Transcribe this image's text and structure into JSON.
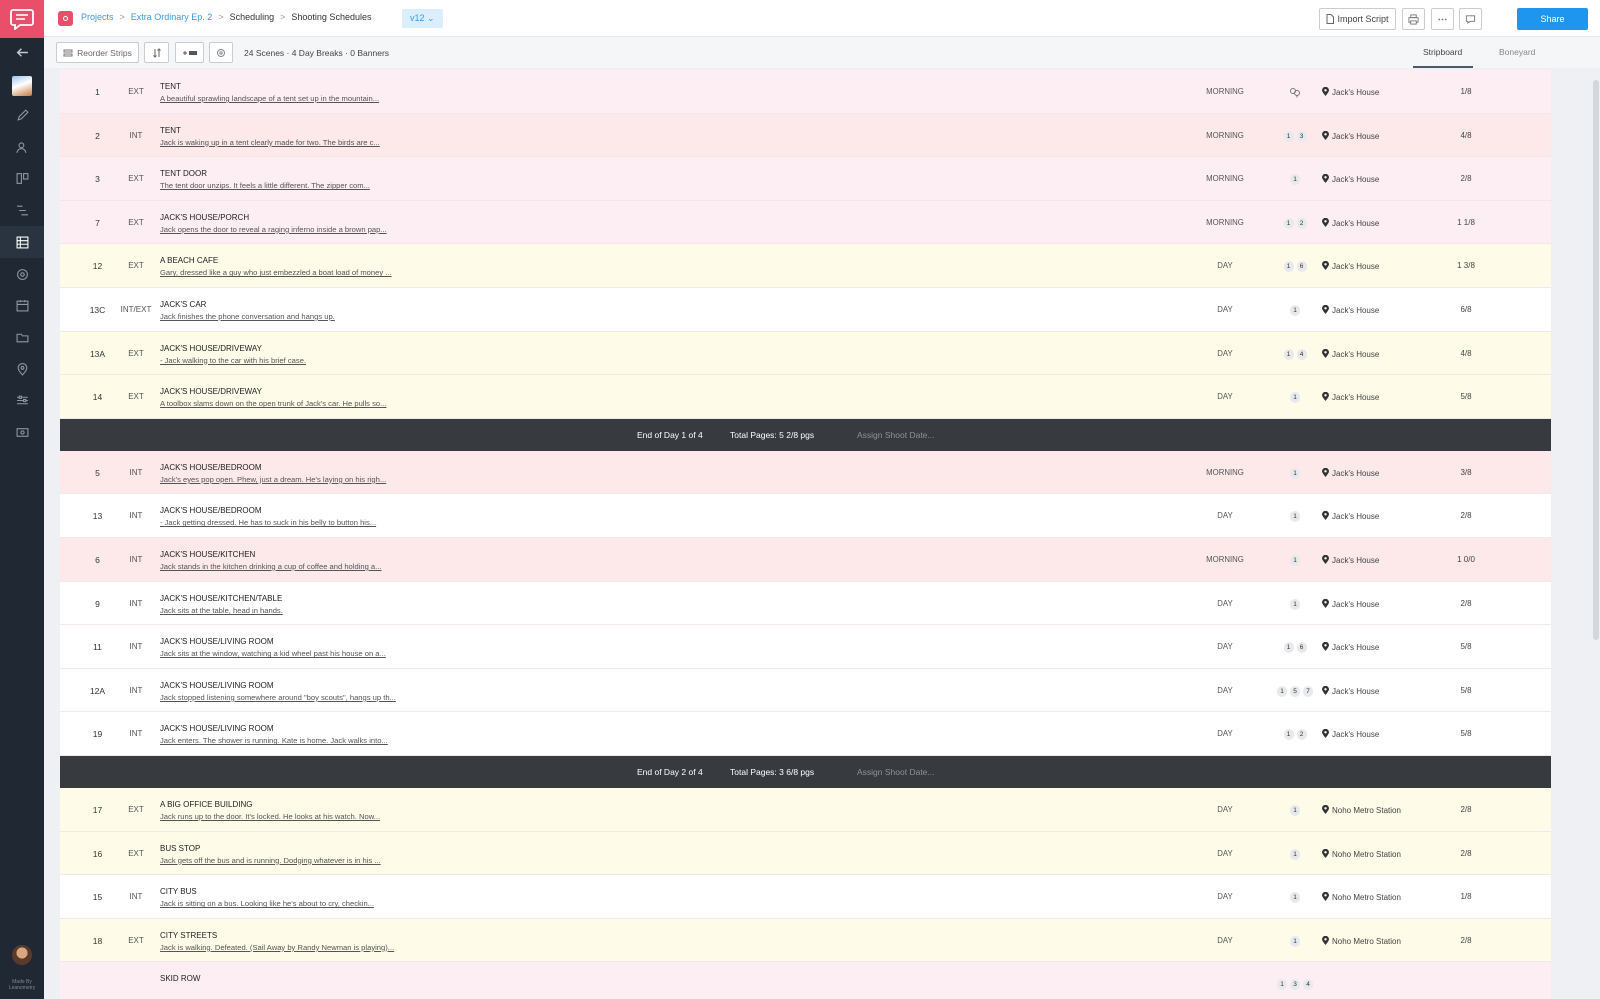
{
  "sidebar": {
    "made_by": "Made By\nLeanometry"
  },
  "breadcrumb": [
    {
      "label": "Projects",
      "link": true
    },
    {
      "label": "Extra Ordinary Ep. 2",
      "link": true
    },
    {
      "label": "Scheduling",
      "link": false
    },
    {
      "label": "Shooting Schedules",
      "link": false
    }
  ],
  "version": "v12",
  "header": {
    "import_label": "Import Script",
    "share_label": "Share"
  },
  "toolbar": {
    "reorder_label": "Reorder Strips",
    "counts": "24 Scenes · 4 Day Breaks · 0 Banners",
    "tabs": [
      "Stripboard",
      "Boneyard"
    ]
  },
  "strips": [
    {
      "kind": "scene",
      "color": "pink",
      "num": "1",
      "ie": "EXT",
      "slug": "TENT",
      "desc": "A beautiful sprawling landscape of a tent set up in the mountain...",
      "tod": "MORNING",
      "cast": [],
      "cast_icon": true,
      "loc": "Jack's House",
      "pages": "1/8"
    },
    {
      "kind": "scene",
      "color": "rose",
      "num": "2",
      "ie": "INT",
      "slug": "TENT",
      "desc": "Jack is waking up in a tent clearly made for two. The birds are c...",
      "tod": "MORNING",
      "cast": [
        "1",
        "3"
      ],
      "loc": "Jack's House",
      "pages": "4/8"
    },
    {
      "kind": "scene",
      "color": "pink",
      "num": "3",
      "ie": "EXT",
      "slug": "TENT DOOR",
      "desc": "The tent door unzips. It feels a little different. The zipper com...",
      "tod": "MORNING",
      "cast": [
        "1"
      ],
      "loc": "Jack's House",
      "pages": "2/8"
    },
    {
      "kind": "scene",
      "color": "pink",
      "num": "7",
      "ie": "EXT",
      "slug": "JACK'S HOUSE/PORCH",
      "desc": "Jack opens the door to reveal a raging inferno inside a brown pap...",
      "tod": "MORNING",
      "cast": [
        "1",
        "2"
      ],
      "loc": "Jack's House",
      "pages": "1 1/8"
    },
    {
      "kind": "scene",
      "color": "yellow",
      "num": "12",
      "ie": "EXT",
      "slug": "A BEACH CAFE",
      "desc": "Gary, dressed like a guy who just embezzled a boat load of money ...",
      "tod": "DAY",
      "cast": [
        "1",
        "6"
      ],
      "loc": "Jack's House",
      "pages": "1 3/8"
    },
    {
      "kind": "scene",
      "color": "white",
      "num": "13C",
      "ie": "INT/EXT",
      "slug": "JACK'S CAR",
      "desc": "Jack finishes the phone conversation and hangs up.",
      "tod": "DAY",
      "cast": [
        "1"
      ],
      "loc": "Jack's House",
      "pages": "6/8"
    },
    {
      "kind": "scene",
      "color": "yellow",
      "num": "13A",
      "ie": "EXT",
      "slug": "JACK'S HOUSE/DRIVEWAY",
      "desc": "- Jack walking to the car with his brief case.",
      "tod": "DAY",
      "cast": [
        "1",
        "4"
      ],
      "loc": "Jack's House",
      "pages": "4/8"
    },
    {
      "kind": "scene",
      "color": "yellow",
      "num": "14",
      "ie": "EXT",
      "slug": "JACK'S HOUSE/DRIVEWAY",
      "desc": "A toolbox slams down on the open trunk of Jack's car. He pulls so...",
      "tod": "DAY",
      "cast": [
        "1"
      ],
      "loc": "Jack's House",
      "pages": "5/8"
    },
    {
      "kind": "break",
      "eod": "End of Day 1 of 4",
      "total": "Total Pages:  5 2/8 pgs",
      "assign": "Assign Shoot Date..."
    },
    {
      "kind": "scene",
      "color": "rose",
      "num": "5",
      "ie": "INT",
      "slug": "JACK'S HOUSE/BEDROOM",
      "desc": "Jack's eyes pop open. Phew, just a dream. He's laying on his righ...",
      "tod": "MORNING",
      "cast": [
        "1"
      ],
      "loc": "Jack's House",
      "pages": "3/8"
    },
    {
      "kind": "scene",
      "color": "white",
      "num": "13",
      "ie": "INT",
      "slug": "JACK'S HOUSE/BEDROOM",
      "desc": "- Jack getting dressed. He has to suck in his belly to button his...",
      "tod": "DAY",
      "cast": [
        "1"
      ],
      "loc": "Jack's House",
      "pages": "2/8"
    },
    {
      "kind": "scene",
      "color": "rose",
      "num": "6",
      "ie": "INT",
      "slug": "JACK'S HOUSE/KITCHEN",
      "desc": "Jack stands in the kitchen drinking a cup of coffee and holding a...",
      "tod": "MORNING",
      "cast": [
        "1"
      ],
      "loc": "Jack's House",
      "pages": "1 0/0"
    },
    {
      "kind": "scene",
      "color": "white",
      "num": "9",
      "ie": "INT",
      "slug": "JACK'S HOUSE/KITCHEN/TABLE",
      "desc": "Jack sits at the table, head in hands.",
      "tod": "DAY",
      "cast": [
        "1"
      ],
      "loc": "Jack's House",
      "pages": "2/8"
    },
    {
      "kind": "scene",
      "color": "white",
      "num": "11",
      "ie": "INT",
      "slug": "JACK'S HOUSE/LIVING ROOM",
      "desc": "Jack sits at the window, watching a kid wheel past his house on a...",
      "tod": "DAY",
      "cast": [
        "1",
        "6"
      ],
      "loc": "Jack's House",
      "pages": "5/8"
    },
    {
      "kind": "scene",
      "color": "white",
      "num": "12A",
      "ie": "INT",
      "slug": "JACK'S HOUSE/LIVING ROOM",
      "desc": "Jack stopped listening somewhere around \"boy scouts\", hangs up th...",
      "tod": "DAY",
      "cast": [
        "1",
        "5",
        "7"
      ],
      "loc": "Jack's House",
      "pages": "5/8"
    },
    {
      "kind": "scene",
      "color": "white",
      "num": "19",
      "ie": "INT",
      "slug": "JACK'S HOUSE/LIVING ROOM",
      "desc": "Jack enters. The shower is running. Kate is home. Jack walks into...",
      "tod": "DAY",
      "cast": [
        "1",
        "2"
      ],
      "loc": "Jack's House",
      "pages": "5/8"
    },
    {
      "kind": "break",
      "eod": "End of Day 2 of 4",
      "total": "Total Pages:  3 6/8 pgs",
      "assign": "Assign Shoot Date..."
    },
    {
      "kind": "scene",
      "color": "yellow",
      "num": "17",
      "ie": "EXT",
      "slug": "A BIG OFFICE BUILDING",
      "desc": "Jack runs up to the door. It's locked. He looks at his watch. Now...",
      "tod": "DAY",
      "cast": [
        "1"
      ],
      "loc": "Noho Metro Station",
      "pages": "2/8"
    },
    {
      "kind": "scene",
      "color": "yellow",
      "num": "16",
      "ie": "EXT",
      "slug": "BUS STOP",
      "desc": "Jack gets off the bus and is running. Dodging whatever is in his ...",
      "tod": "DAY",
      "cast": [
        "1"
      ],
      "loc": "Noho Metro Station",
      "pages": "2/8"
    },
    {
      "kind": "scene",
      "color": "white",
      "num": "15",
      "ie": "INT",
      "slug": "CITY BUS",
      "desc": "Jack is sitting on a bus. Looking like he's about to cry, checkin...",
      "tod": "DAY",
      "cast": [
        "1"
      ],
      "loc": "Noho Metro Station",
      "pages": "1/8"
    },
    {
      "kind": "scene",
      "color": "yellow",
      "num": "18",
      "ie": "EXT",
      "slug": "CITY STREETS",
      "desc": "Jack is walking. Defeated. (Sail Away by Randy Newman is playing)...",
      "tod": "DAY",
      "cast": [
        "1"
      ],
      "loc": "Noho Metro Station",
      "pages": "2/8"
    },
    {
      "kind": "scene",
      "color": "pink",
      "num": "",
      "ie": "",
      "slug": "SKID ROW",
      "desc": "",
      "tod": "",
      "cast": [
        "1",
        "3",
        "4"
      ],
      "loc": "",
      "pages": ""
    }
  ]
}
